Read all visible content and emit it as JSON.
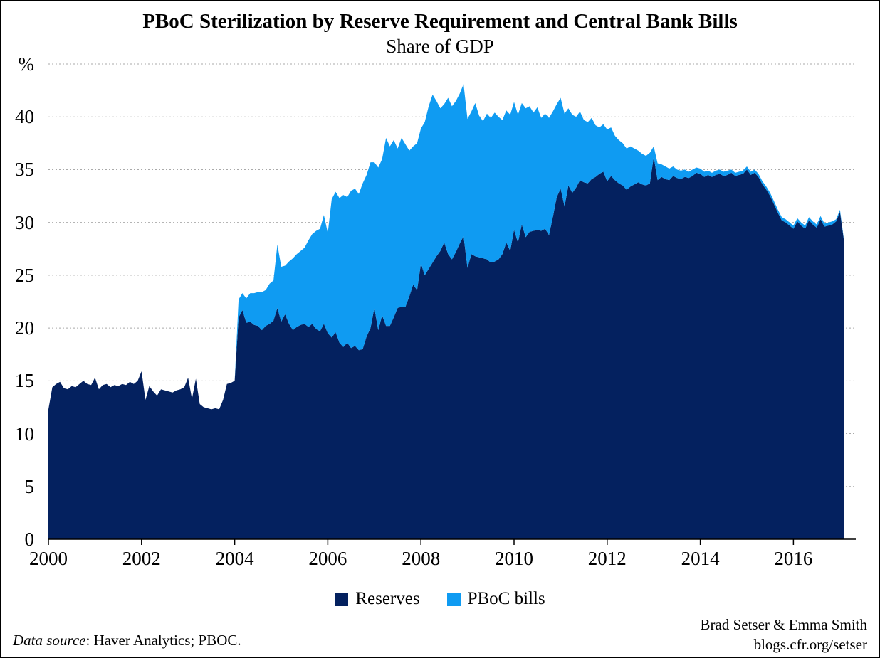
{
  "title": "PBoC Sterilization by Reserve Requirement and Central Bank Bills",
  "subtitle": "Share of GDP",
  "y_axis": {
    "unit_label": "%",
    "tick_values": [
      0,
      5,
      10,
      15,
      20,
      25,
      30,
      35,
      40
    ],
    "max_gridline": 45
  },
  "x_axis": {
    "tick_years": [
      2000,
      2002,
      2004,
      2006,
      2008,
      2010,
      2012,
      2014,
      2016
    ]
  },
  "legend": [
    {
      "label": "Reserves",
      "color": "#04215f"
    },
    {
      "label": "PBoC bills",
      "color": "#0f9bf2"
    }
  ],
  "footer": {
    "source_italic": "Data source",
    "source_rest": ": Haver Analytics; PBOC.",
    "credit_line1": "Brad Setser & Emma Smith",
    "credit_line2": "blogs.cfr.org/setser"
  },
  "colors": {
    "reserves": "#04215f",
    "bills": "#0f9bf2",
    "gridline": "#a9a9a9",
    "axis": "#000000",
    "background": "#ffffff"
  },
  "chart_data": {
    "type": "area",
    "stacked": true,
    "frequency": "monthly",
    "x_start": "2000-01",
    "x_end": "2017-02",
    "title": "PBoC Sterilization by Reserve Requirement and Central Bank Bills",
    "subtitle": "Share of GDP",
    "ylabel": "%",
    "ylim": [
      0,
      45
    ],
    "gridlines": [
      5,
      10,
      15,
      20,
      25,
      30,
      35,
      40,
      45
    ],
    "grid_style": "dotted",
    "legend_position": "bottom",
    "series": [
      {
        "name": "Reserves",
        "color": "#04215f",
        "values": [
          12.3,
          14.4,
          14.7,
          14.9,
          14.3,
          14.2,
          14.5,
          14.4,
          14.7,
          15.0,
          14.7,
          14.6,
          15.3,
          14.2,
          14.6,
          14.7,
          14.4,
          14.6,
          14.5,
          14.7,
          14.6,
          14.9,
          14.7,
          15.0,
          15.9,
          13.2,
          14.5,
          14.0,
          13.6,
          14.2,
          14.1,
          14.0,
          13.9,
          14.1,
          14.2,
          14.4,
          15.3,
          13.3,
          15.2,
          12.8,
          12.5,
          12.4,
          12.3,
          12.4,
          12.3,
          13.2,
          14.7,
          14.8,
          15.0,
          21.0,
          21.7,
          20.5,
          20.6,
          20.3,
          20.2,
          19.8,
          20.2,
          20.4,
          20.7,
          21.9,
          20.6,
          21.3,
          20.4,
          19.8,
          20.1,
          20.3,
          20.4,
          20.1,
          20.4,
          19.9,
          19.7,
          20.4,
          19.5,
          19.1,
          19.6,
          18.6,
          18.2,
          18.6,
          18.1,
          18.3,
          17.9,
          18.0,
          19.2,
          20.0,
          21.9,
          19.8,
          21.2,
          20.2,
          20.2,
          21.0,
          21.9,
          22.0,
          22.0,
          23.0,
          24.1,
          23.6,
          26.1,
          25.0,
          25.6,
          26.2,
          26.8,
          27.3,
          28.1,
          27.0,
          26.5,
          27.2,
          28.0,
          28.7,
          25.7,
          27.0,
          26.8,
          26.7,
          26.6,
          26.5,
          26.2,
          26.3,
          26.5,
          27.0,
          28.1,
          27.3,
          29.3,
          28.1,
          29.8,
          28.6,
          29.1,
          29.2,
          29.3,
          29.2,
          29.4,
          28.8,
          30.5,
          32.4,
          33.2,
          31.5,
          33.5,
          32.8,
          33.3,
          34.0,
          33.8,
          33.7,
          34.1,
          34.3,
          34.6,
          34.8,
          33.9,
          34.4,
          34.0,
          33.7,
          33.5,
          33.1,
          33.4,
          33.6,
          33.8,
          33.6,
          33.5,
          33.7,
          36.2,
          34.0,
          34.3,
          34.1,
          34.0,
          34.4,
          34.2,
          34.1,
          34.3,
          34.2,
          34.4,
          34.7,
          34.6,
          34.3,
          34.5,
          34.3,
          34.5,
          34.6,
          34.4,
          34.5,
          34.7,
          34.4,
          34.5,
          34.6,
          35.0,
          34.5,
          34.7,
          34.3,
          33.6,
          33.1,
          32.5,
          31.7,
          30.9,
          30.2,
          30.0,
          29.7,
          29.4,
          30.1,
          29.7,
          29.4,
          30.2,
          29.8,
          29.5,
          30.3,
          29.6,
          29.7,
          29.8,
          30.1,
          31.0,
          28.3
        ]
      },
      {
        "name": "PBoC bills",
        "color": "#0f9bf2",
        "values": [
          0,
          0,
          0,
          0,
          0,
          0,
          0,
          0,
          0,
          0,
          0,
          0,
          0,
          0,
          0,
          0,
          0,
          0,
          0,
          0,
          0,
          0,
          0,
          0,
          0,
          0,
          0,
          0,
          0,
          0,
          0,
          0,
          0,
          0,
          0,
          0,
          0,
          0,
          0,
          0,
          0,
          0,
          0,
          0,
          0,
          0,
          0,
          0,
          0,
          1.7,
          1.6,
          2.3,
          2.7,
          3.0,
          3.2,
          3.6,
          3.4,
          3.8,
          3.8,
          6.0,
          5.2,
          4.6,
          5.9,
          6.8,
          6.9,
          7.0,
          7.2,
          8.2,
          8.5,
          9.3,
          9.7,
          10.3,
          9.5,
          13.1,
          13.3,
          13.7,
          14.4,
          13.8,
          14.9,
          14.9,
          14.8,
          15.7,
          15.3,
          15.7,
          13.8,
          15.4,
          14.8,
          17.8,
          17.0,
          16.8,
          15.1,
          16.0,
          15.4,
          13.8,
          13.1,
          13.9,
          12.8,
          14.5,
          15.4,
          15.9,
          14.7,
          13.5,
          13.1,
          14.8,
          14.5,
          14.3,
          14.2,
          14.4,
          14.1,
          13.5,
          14.5,
          13.4,
          13.0,
          13.8,
          13.7,
          14.1,
          13.5,
          12.7,
          12.5,
          12.9,
          12.1,
          12.1,
          11.5,
          12.2,
          11.9,
          11.2,
          11.6,
          10.7,
          10.9,
          11.1,
          10.0,
          8.8,
          8.6,
          8.8,
          7.3,
          7.4,
          6.7,
          6.5,
          5.9,
          5.8,
          5.8,
          4.9,
          4.4,
          4.5,
          4.9,
          4.6,
          4.2,
          4.1,
          4.0,
          3.9,
          3.8,
          3.4,
          3.0,
          2.9,
          2.8,
          2.9,
          1.0,
          1.6,
          1.2,
          1.2,
          1.1,
          0.9,
          0.8,
          0.8,
          0.7,
          0.6,
          0.6,
          0.5,
          0.5,
          0.5,
          0.4,
          0.4,
          0.4,
          0.4,
          0.4,
          0.4,
          0.3,
          0.3,
          0.3,
          0.3,
          0.3,
          0.3,
          0.3,
          0.3,
          0.3,
          0.3,
          0.3,
          0.3,
          0.3,
          0.3,
          0.3,
          0.3,
          0.3,
          0.3,
          0.3,
          0.3,
          0.3,
          0.3,
          0.3,
          0.3,
          0.3,
          0.3,
          0.3,
          0.2,
          0.2,
          0.1
        ]
      }
    ]
  }
}
